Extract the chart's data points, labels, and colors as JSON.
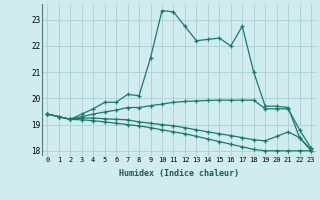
{
  "xlabel": "Humidex (Indice chaleur)",
  "bg_color": "#d0ecee",
  "grid_color": "#b0d4d6",
  "line_color": "#1a7a6e",
  "xlim": [
    -0.5,
    23.5
  ],
  "ylim": [
    17.8,
    23.6
  ],
  "yticks": [
    18,
    19,
    20,
    21,
    22,
    23
  ],
  "xticks": [
    0,
    1,
    2,
    3,
    4,
    5,
    6,
    7,
    8,
    9,
    10,
    11,
    12,
    13,
    14,
    15,
    16,
    17,
    18,
    19,
    20,
    21,
    22,
    23
  ],
  "series1": [
    19.4,
    19.3,
    19.2,
    19.4,
    19.6,
    19.85,
    19.85,
    20.15,
    20.1,
    21.55,
    23.35,
    23.3,
    22.75,
    22.2,
    22.25,
    22.3,
    22.0,
    22.75,
    21.0,
    19.7,
    19.7,
    19.65,
    18.5,
    18.0
  ],
  "series2": [
    19.4,
    19.3,
    19.2,
    19.3,
    19.4,
    19.48,
    19.55,
    19.65,
    19.65,
    19.72,
    19.78,
    19.85,
    19.88,
    19.9,
    19.92,
    19.93,
    19.93,
    19.93,
    19.93,
    19.6,
    19.6,
    19.6,
    18.8,
    18.1
  ],
  "series3": [
    19.4,
    19.3,
    19.2,
    19.25,
    19.25,
    19.22,
    19.2,
    19.18,
    19.1,
    19.05,
    19.0,
    18.95,
    18.88,
    18.8,
    18.72,
    18.65,
    18.58,
    18.5,
    18.42,
    18.38,
    18.55,
    18.72,
    18.5,
    18.05
  ],
  "series4": [
    19.4,
    19.3,
    19.2,
    19.18,
    19.15,
    19.1,
    19.05,
    19.0,
    18.95,
    18.88,
    18.8,
    18.72,
    18.65,
    18.55,
    18.45,
    18.35,
    18.25,
    18.15,
    18.05,
    18.0,
    18.0,
    18.0,
    18.0,
    18.0
  ]
}
